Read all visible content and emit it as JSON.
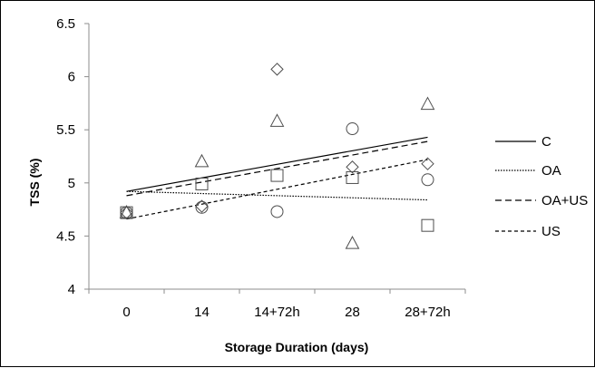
{
  "chart_data": {
    "type": "scatter",
    "title": "",
    "xlabel": "Storage Duration (days)",
    "ylabel": "TSS (%)",
    "categories": [
      "0",
      "14",
      "14+72h",
      "28",
      "28+72h"
    ],
    "ylim": [
      4,
      6.5
    ],
    "yticks": [
      "4",
      "4.5",
      "5",
      "5.5",
      "6",
      "6.5"
    ],
    "grid": false,
    "legend_position": "right",
    "series": [
      {
        "name": "C",
        "marker": "diamond",
        "values": [
          4.72,
          4.78,
          6.07,
          5.15,
          5.18
        ],
        "trend_dash": "",
        "trend": [
          4.92,
          5.43
        ]
      },
      {
        "name": "OA",
        "marker": "circle",
        "values": [
          4.72,
          4.77,
          4.73,
          5.51,
          5.03
        ],
        "trend_dash": "1.5,1.5",
        "trend": [
          4.92,
          4.84
        ]
      },
      {
        "name": "OA+US",
        "marker": "square",
        "values": [
          4.72,
          4.99,
          5.07,
          5.05,
          4.6
        ],
        "trend_dash": "7,4",
        "trend": [
          4.88,
          5.39
        ]
      },
      {
        "name": "US",
        "marker": "triangle",
        "values": [
          4.72,
          5.2,
          5.58,
          4.43,
          5.74
        ],
        "trend_dash": "4,3",
        "trend": [
          4.66,
          5.22
        ]
      }
    ]
  }
}
